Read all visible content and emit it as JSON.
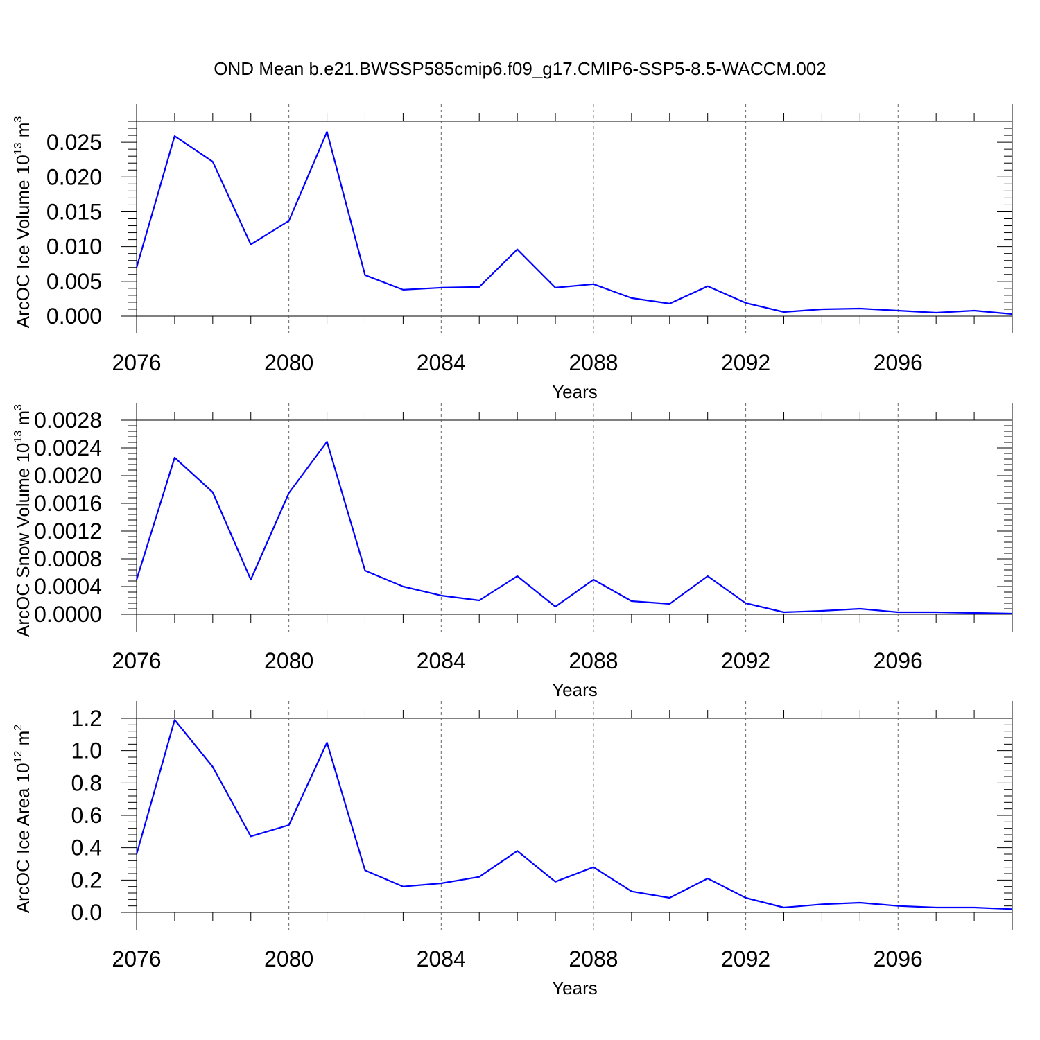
{
  "figure": {
    "title": "OND Mean b.e21.BWSSP585cmip6.f09_g17.CMIP6-SSP5-8.5-WACCM.002"
  },
  "colors": {
    "line": "#0000ff",
    "axis": "#000000",
    "grid": "#666666",
    "background": "#ffffff"
  },
  "chart_data": [
    {
      "type": "line",
      "xlabel": "Years",
      "ylabel": {
        "text": "ArcOC Ice Volume 10",
        "exp": "13",
        "unit": " m",
        "unit_exp": "3"
      },
      "xlim": [
        2076,
        2099
      ],
      "ylim": [
        0,
        0.028
      ],
      "xticks": [
        2076,
        2080,
        2084,
        2088,
        2092,
        2096
      ],
      "xtick_labels": [
        "2076",
        "2080",
        "2084",
        "2088",
        "2092",
        "2096"
      ],
      "yticks": [
        0,
        0.005,
        0.01,
        0.015,
        0.02,
        0.025
      ],
      "ytick_labels": [
        "0.000",
        "0.005",
        "0.010",
        "0.015",
        "0.020",
        "0.025"
      ],
      "grid": "vertical dashed at major x ticks",
      "series": [
        {
          "color": "#0000ff",
          "x": [
            2076,
            2077,
            2078,
            2079,
            2080,
            2081,
            2082,
            2083,
            2084,
            2085,
            2086,
            2087,
            2088,
            2089,
            2090,
            2091,
            2092,
            2093,
            2094,
            2095,
            2096,
            2097,
            2098,
            2099
          ],
          "y": [
            0.007,
            0.0259,
            0.0222,
            0.0103,
            0.0137,
            0.0265,
            0.0059,
            0.0038,
            0.0041,
            0.0042,
            0.0096,
            0.0041,
            0.0046,
            0.0026,
            0.0018,
            0.0043,
            0.0019,
            0.0006,
            0.001,
            0.0011,
            0.0008,
            0.0005,
            0.0008,
            0.0003
          ]
        }
      ]
    },
    {
      "type": "line",
      "xlabel": "Years",
      "ylabel": {
        "text": "ArcOC Snow Volume 10",
        "exp": "13",
        "unit": " m",
        "unit_exp": "3"
      },
      "xlim": [
        2076,
        2099
      ],
      "ylim": [
        0,
        0.0028
      ],
      "xticks": [
        2076,
        2080,
        2084,
        2088,
        2092,
        2096
      ],
      "xtick_labels": [
        "2076",
        "2080",
        "2084",
        "2088",
        "2092",
        "2096"
      ],
      "yticks": [
        0,
        0.0004,
        0.0008,
        0.0012,
        0.0016,
        0.002,
        0.0024,
        0.0028
      ],
      "ytick_labels": [
        "0.0000",
        "0.0004",
        "0.0008",
        "0.0012",
        "0.0016",
        "0.0020",
        "0.0024",
        "0.0028"
      ],
      "grid": "vertical dashed at major x ticks",
      "series": [
        {
          "color": "#0000ff",
          "x": [
            2076,
            2077,
            2078,
            2079,
            2080,
            2081,
            2082,
            2083,
            2084,
            2085,
            2086,
            2087,
            2088,
            2089,
            2090,
            2091,
            2092,
            2093,
            2094,
            2095,
            2096,
            2097,
            2098,
            2099
          ],
          "y": [
            0.0005,
            0.00226,
            0.00176,
            0.0005,
            0.00175,
            0.00249,
            0.00063,
            0.0004,
            0.00027,
            0.0002,
            0.00055,
            0.00011,
            0.0005,
            0.00019,
            0.00015,
            0.00055,
            0.00016,
            3e-05,
            5e-05,
            8e-05,
            3e-05,
            3e-05,
            2e-05,
            1e-05
          ]
        }
      ]
    },
    {
      "type": "line",
      "xlabel": "Years",
      "ylabel": {
        "text": "ArcOC Ice Area 10",
        "exp": "12",
        "unit": " m",
        "unit_exp": "2"
      },
      "xlim": [
        2076,
        2099
      ],
      "ylim": [
        0,
        1.2
      ],
      "xticks": [
        2076,
        2080,
        2084,
        2088,
        2092,
        2096
      ],
      "xtick_labels": [
        "2076",
        "2080",
        "2084",
        "2088",
        "2092",
        "2096"
      ],
      "yticks": [
        0,
        0.2,
        0.4,
        0.6,
        0.8,
        1.0,
        1.2
      ],
      "ytick_labels": [
        "0.0",
        "0.2",
        "0.4",
        "0.6",
        "0.8",
        "1.0",
        "1.2"
      ],
      "grid": "vertical dashed at major x ticks",
      "series": [
        {
          "color": "#0000ff",
          "x": [
            2076,
            2077,
            2078,
            2079,
            2080,
            2081,
            2082,
            2083,
            2084,
            2085,
            2086,
            2087,
            2088,
            2089,
            2090,
            2091,
            2092,
            2093,
            2094,
            2095,
            2096,
            2097,
            2098,
            2099
          ],
          "y": [
            0.36,
            1.19,
            0.9,
            0.47,
            0.54,
            1.05,
            0.26,
            0.16,
            0.18,
            0.22,
            0.38,
            0.19,
            0.28,
            0.13,
            0.09,
            0.21,
            0.09,
            0.03,
            0.05,
            0.06,
            0.04,
            0.03,
            0.03,
            0.02
          ]
        }
      ]
    }
  ]
}
